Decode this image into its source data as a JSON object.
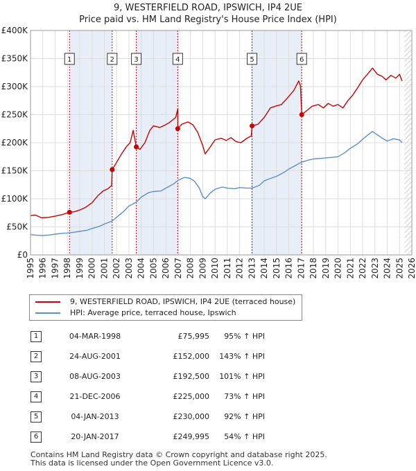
{
  "chart_data": {
    "type": "line",
    "title": "9, WESTERFIELD ROAD, IPSWICH, IP4 2UE",
    "subtitle": "Price paid vs. HM Land Registry's House Price Index (HPI)",
    "xlim": [
      1995,
      2026
    ],
    "ylim": [
      0,
      400000
    ],
    "x_ticks": [
      "1995",
      "1996",
      "1997",
      "1998",
      "1999",
      "2000",
      "2001",
      "2002",
      "2003",
      "2004",
      "2005",
      "2006",
      "2007",
      "2008",
      "2009",
      "2010",
      "2011",
      "2012",
      "2013",
      "2014",
      "2015",
      "2016",
      "2017",
      "2018",
      "2019",
      "2020",
      "2021",
      "2022",
      "2023",
      "2024",
      "2025",
      "2026"
    ],
    "y_ticks": [
      {
        "value": 0,
        "label": "£0"
      },
      {
        "value": 50000,
        "label": "£50K"
      },
      {
        "value": 100000,
        "label": "£100K"
      },
      {
        "value": 150000,
        "label": "£150K"
      },
      {
        "value": 200000,
        "label": "£200K"
      },
      {
        "value": 250000,
        "label": "£250K"
      },
      {
        "value": 300000,
        "label": "£300K"
      },
      {
        "value": 350000,
        "label": "£350K"
      },
      {
        "value": 400000,
        "label": "£400K"
      }
    ],
    "data_end": 2025.4,
    "series": [
      {
        "name": "9, WESTERFIELD ROAD, IPSWICH, IP4 2UE (terraced house)",
        "color": "#cc0000",
        "points": [
          [
            1995.0,
            70000
          ],
          [
            1995.4,
            71000
          ],
          [
            1995.9,
            66000
          ],
          [
            1996.5,
            67000
          ],
          [
            1997.0,
            69000
          ],
          [
            1997.6,
            72000
          ],
          [
            1998.17,
            75995
          ],
          [
            1998.6,
            77000
          ],
          [
            1999.0,
            80000
          ],
          [
            1999.5,
            85000
          ],
          [
            2000.0,
            93000
          ],
          [
            2000.5,
            106000
          ],
          [
            2000.9,
            114000
          ],
          [
            2001.3,
            118000
          ],
          [
            2001.6,
            124000
          ],
          [
            2001.64,
            152000
          ],
          [
            2002.0,
            165000
          ],
          [
            2002.4,
            180000
          ],
          [
            2002.8,
            193000
          ],
          [
            2003.1,
            200000
          ],
          [
            2003.35,
            222000
          ],
          [
            2003.6,
            192500
          ],
          [
            2003.9,
            188000
          ],
          [
            2004.3,
            200000
          ],
          [
            2004.7,
            222000
          ],
          [
            2005.0,
            230000
          ],
          [
            2005.5,
            227000
          ],
          [
            2005.9,
            231000
          ],
          [
            2006.3,
            236000
          ],
          [
            2006.8,
            245000
          ],
          [
            2006.97,
            260000
          ],
          [
            2006.98,
            225000
          ],
          [
            2007.3,
            233000
          ],
          [
            2007.8,
            237000
          ],
          [
            2008.2,
            232000
          ],
          [
            2008.6,
            218000
          ],
          [
            2009.0,
            195000
          ],
          [
            2009.2,
            180000
          ],
          [
            2009.6,
            192000
          ],
          [
            2010.0,
            205000
          ],
          [
            2010.5,
            208000
          ],
          [
            2010.9,
            204000
          ],
          [
            2011.3,
            209000
          ],
          [
            2011.7,
            202000
          ],
          [
            2012.1,
            200000
          ],
          [
            2012.6,
            208000
          ],
          [
            2012.95,
            212000
          ],
          [
            2013.01,
            230000
          ],
          [
            2013.5,
            233000
          ],
          [
            2014.0,
            245000
          ],
          [
            2014.5,
            262000
          ],
          [
            2014.9,
            265000
          ],
          [
            2015.4,
            268000
          ],
          [
            2015.9,
            280000
          ],
          [
            2016.4,
            293000
          ],
          [
            2016.8,
            310000
          ],
          [
            2016.95,
            301000
          ],
          [
            2017.05,
            249995
          ],
          [
            2017.5,
            258000
          ],
          [
            2017.9,
            265000
          ],
          [
            2018.4,
            268000
          ],
          [
            2018.8,
            262000
          ],
          [
            2019.2,
            270000
          ],
          [
            2019.6,
            265000
          ],
          [
            2020.0,
            268000
          ],
          [
            2020.4,
            262000
          ],
          [
            2020.8,
            275000
          ],
          [
            2021.2,
            285000
          ],
          [
            2021.6,
            298000
          ],
          [
            2022.0,
            312000
          ],
          [
            2022.5,
            325000
          ],
          [
            2022.8,
            333000
          ],
          [
            2023.2,
            322000
          ],
          [
            2023.6,
            318000
          ],
          [
            2023.9,
            312000
          ],
          [
            2024.3,
            320000
          ],
          [
            2024.7,
            315000
          ],
          [
            2025.0,
            322000
          ],
          [
            2025.2,
            310000
          ]
        ]
      },
      {
        "name": "HPI: Average price, terraced house, Ipswich",
        "color": "#5b8fc9",
        "points": [
          [
            1995.0,
            36000
          ],
          [
            1995.5,
            35000
          ],
          [
            1996.0,
            34500
          ],
          [
            1996.6,
            35500
          ],
          [
            1997.0,
            37000
          ],
          [
            1997.6,
            38500
          ],
          [
            1998.0,
            39000
          ],
          [
            1998.6,
            40500
          ],
          [
            1999.0,
            42000
          ],
          [
            1999.6,
            44000
          ],
          [
            2000.0,
            47000
          ],
          [
            2000.6,
            51000
          ],
          [
            2001.0,
            55000
          ],
          [
            2001.6,
            60000
          ],
          [
            2002.0,
            67000
          ],
          [
            2002.6,
            78000
          ],
          [
            2003.0,
            87000
          ],
          [
            2003.6,
            94000
          ],
          [
            2004.0,
            103000
          ],
          [
            2004.6,
            111000
          ],
          [
            2005.0,
            113000
          ],
          [
            2005.6,
            114000
          ],
          [
            2006.0,
            119000
          ],
          [
            2006.6,
            126000
          ],
          [
            2007.0,
            133000
          ],
          [
            2007.5,
            138000
          ],
          [
            2007.9,
            137000
          ],
          [
            2008.3,
            132000
          ],
          [
            2008.7,
            120000
          ],
          [
            2009.0,
            104000
          ],
          [
            2009.2,
            100000
          ],
          [
            2009.6,
            110000
          ],
          [
            2010.0,
            117000
          ],
          [
            2010.6,
            121000
          ],
          [
            2011.0,
            119000
          ],
          [
            2011.6,
            118000
          ],
          [
            2012.0,
            120000
          ],
          [
            2012.6,
            119000
          ],
          [
            2013.0,
            119000
          ],
          [
            2013.6,
            124000
          ],
          [
            2014.0,
            132000
          ],
          [
            2014.6,
            137000
          ],
          [
            2015.0,
            140000
          ],
          [
            2015.6,
            147000
          ],
          [
            2016.0,
            153000
          ],
          [
            2016.6,
            160000
          ],
          [
            2017.0,
            165000
          ],
          [
            2017.6,
            169000
          ],
          [
            2018.0,
            171000
          ],
          [
            2018.6,
            172000
          ],
          [
            2019.0,
            173000
          ],
          [
            2019.6,
            174000
          ],
          [
            2020.0,
            175000
          ],
          [
            2020.6,
            183000
          ],
          [
            2021.0,
            190000
          ],
          [
            2021.6,
            198000
          ],
          [
            2022.0,
            206000
          ],
          [
            2022.5,
            215000
          ],
          [
            2022.8,
            220000
          ],
          [
            2023.2,
            214000
          ],
          [
            2023.6,
            208000
          ],
          [
            2024.0,
            203000
          ],
          [
            2024.5,
            207000
          ],
          [
            2025.0,
            205000
          ],
          [
            2025.2,
            200000
          ]
        ]
      }
    ],
    "markers": [
      {
        "label": "1",
        "x": 1998.17,
        "y": 75995
      },
      {
        "label": "2",
        "x": 2001.64,
        "y": 152000
      },
      {
        "label": "3",
        "x": 2003.6,
        "y": 192500
      },
      {
        "label": "4",
        "x": 2006.97,
        "y": 225000
      },
      {
        "label": "5",
        "x": 2013.01,
        "y": 230000
      },
      {
        "label": "6",
        "x": 2017.05,
        "y": 249995
      }
    ],
    "shaded_spans": [
      [
        1998.17,
        2001.64
      ],
      [
        2003.6,
        2006.97
      ],
      [
        2013.01,
        2017.05
      ]
    ],
    "hatch_from": 2025.4
  },
  "legend": {
    "property_label": "9, WESTERFIELD ROAD, IPSWICH, IP4 2UE (terraced house)",
    "hpi_label": "HPI: Average price, terraced house, Ipswich",
    "property_color": "#cc0000",
    "hpi_color": "#5b8fc9"
  },
  "transactions": [
    {
      "num": "1",
      "date": "04-MAR-1998",
      "price": "£75,995",
      "hpi": "95% ↑ HPI"
    },
    {
      "num": "2",
      "date": "24-AUG-2001",
      "price": "£152,000",
      "hpi": "143% ↑ HPI"
    },
    {
      "num": "3",
      "date": "08-AUG-2003",
      "price": "£192,500",
      "hpi": "101% ↑ HPI"
    },
    {
      "num": "4",
      "date": "21-DEC-2006",
      "price": "£225,000",
      "hpi": "73% ↑ HPI"
    },
    {
      "num": "5",
      "date": "04-JAN-2013",
      "price": "£230,000",
      "hpi": "92% ↑ HPI"
    },
    {
      "num": "6",
      "date": "20-JAN-2017",
      "price": "£249,995",
      "hpi": "54% ↑ HPI"
    }
  ],
  "footer": {
    "line1": "Contains HM Land Registry data © Crown copyright and database right 2025.",
    "line2": "This data is licensed under the Open Government Licence v3.0."
  }
}
